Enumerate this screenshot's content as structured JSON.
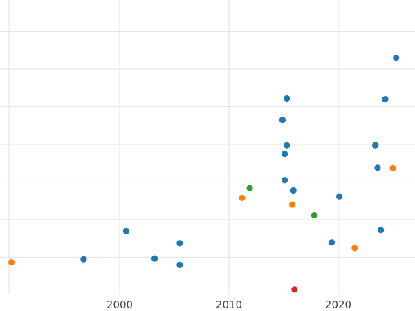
{
  "chart_data": {
    "type": "scatter",
    "title": "",
    "xlabel": "",
    "ylabel": "",
    "xlim": [
      1989,
      2027
    ],
    "ylim": [
      -0.6,
      6.5
    ],
    "x_ticks": [
      2000,
      2010,
      2020
    ],
    "x_tick_labels": [
      "2000",
      "2010",
      "2020"
    ],
    "y_grid_values": [
      0,
      1,
      2,
      3,
      4,
      5,
      6
    ],
    "grid": true,
    "series": [
      {
        "color": "#1f77b4",
        "points": [
          {
            "x": 1996.7,
            "y": -0.05
          },
          {
            "x": 2000.6,
            "y": 0.7
          },
          {
            "x": 2003.2,
            "y": -0.03
          },
          {
            "x": 2005.5,
            "y": 0.38
          },
          {
            "x": 2005.5,
            "y": -0.2
          },
          {
            "x": 2014.9,
            "y": 3.65
          },
          {
            "x": 2015.1,
            "y": 2.75
          },
          {
            "x": 2015.3,
            "y": 4.22
          },
          {
            "x": 2015.3,
            "y": 2.98
          },
          {
            "x": 2015.1,
            "y": 2.05
          },
          {
            "x": 2015.9,
            "y": 1.78
          },
          {
            "x": 2019.4,
            "y": 0.4
          },
          {
            "x": 2020.1,
            "y": 1.62
          },
          {
            "x": 2023.4,
            "y": 2.98
          },
          {
            "x": 2023.6,
            "y": 2.38
          },
          {
            "x": 2023.9,
            "y": 0.73
          },
          {
            "x": 2024.3,
            "y": 4.2
          },
          {
            "x": 2025.3,
            "y": 5.3
          }
        ]
      },
      {
        "color": "#ff7f0e",
        "points": [
          {
            "x": 1990.1,
            "y": -0.13
          },
          {
            "x": 2011.2,
            "y": 1.58
          },
          {
            "x": 2015.8,
            "y": 1.4
          },
          {
            "x": 2021.5,
            "y": 0.25
          },
          {
            "x": 2025.0,
            "y": 2.37
          }
        ]
      },
      {
        "color": "#2ca02c",
        "points": [
          {
            "x": 2011.9,
            "y": 1.84
          },
          {
            "x": 2017.8,
            "y": 1.12
          }
        ]
      },
      {
        "color": "#d62728",
        "points": [
          {
            "x": 2016.0,
            "y": -0.85
          }
        ]
      }
    ]
  }
}
